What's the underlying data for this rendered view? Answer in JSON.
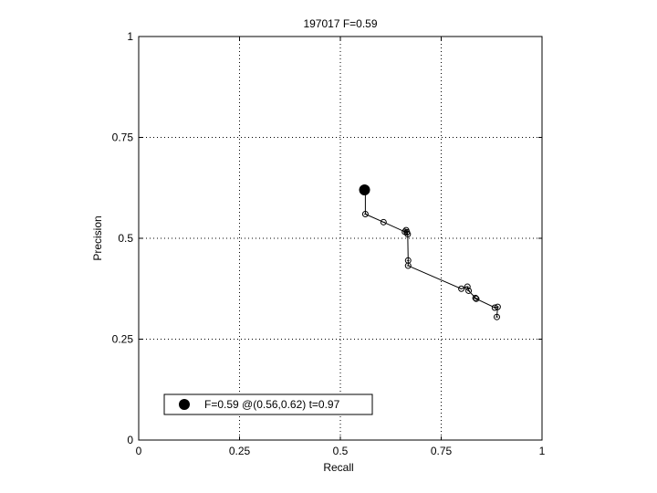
{
  "chart_data": {
    "type": "line",
    "title": "197017 F=0.59",
    "xlabel": "Recall",
    "ylabel": "Precision",
    "xlim": [
      0,
      1
    ],
    "ylim": [
      0,
      1
    ],
    "xticks": [
      0,
      0.25,
      0.5,
      0.75,
      1
    ],
    "yticks": [
      0,
      0.25,
      0.5,
      0.75,
      1
    ],
    "xtick_labels": [
      "0",
      "0.25",
      "0.5",
      "0.75",
      "1"
    ],
    "ytick_labels": [
      "0",
      "0.25",
      "0.5",
      "0.75",
      "1"
    ],
    "grid": true,
    "legend_position": "bottom-left",
    "series": [
      {
        "x": [
          0.562,
          0.562,
          0.607,
          0.66,
          0.663,
          0.665,
          0.667,
          0.668,
          0.668,
          0.8,
          0.815,
          0.818,
          0.835,
          0.837,
          0.883,
          0.89,
          0.888
        ],
        "y": [
          0.62,
          0.56,
          0.54,
          0.516,
          0.52,
          0.515,
          0.51,
          0.445,
          0.432,
          0.375,
          0.38,
          0.37,
          0.352,
          0.35,
          0.328,
          0.33,
          0.305
        ]
      }
    ],
    "best_point": {
      "x": 0.56,
      "y": 0.62
    },
    "legend": {
      "label": "F=0.59 @(0.56,0.62) t=0.97"
    }
  }
}
